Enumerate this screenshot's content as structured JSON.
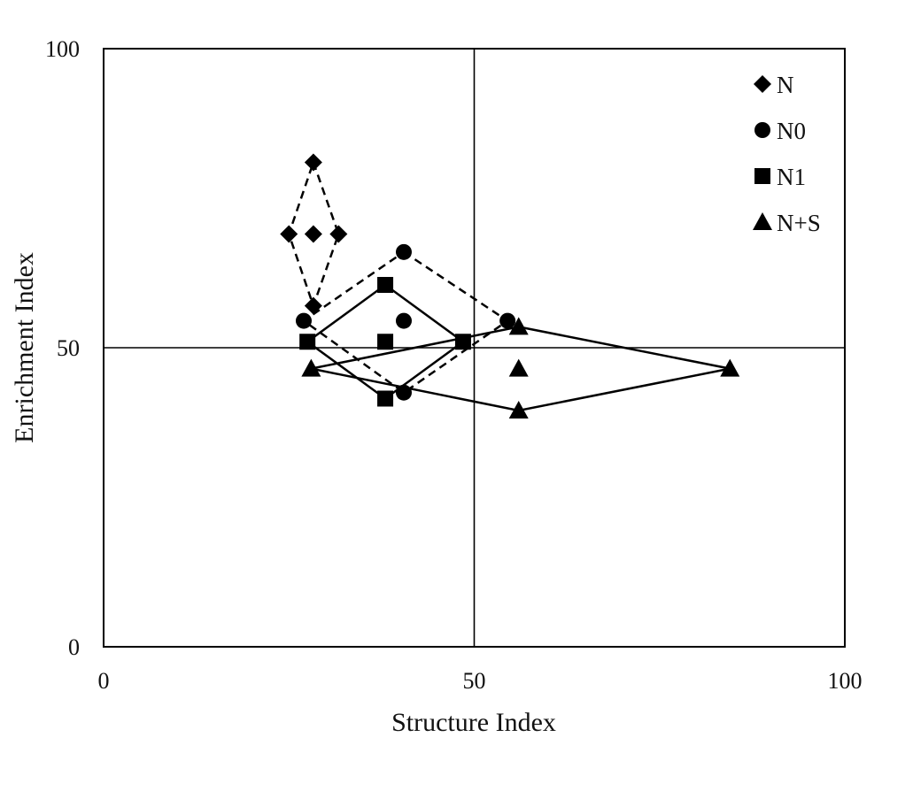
{
  "chart_data": {
    "type": "scatter",
    "title": "",
    "xlabel": "Structure Index",
    "ylabel": "Enrichment Index",
    "xlim": [
      0,
      100
    ],
    "ylim": [
      0,
      100
    ],
    "xticks": [
      "0",
      "50",
      "100"
    ],
    "yticks": [
      "0",
      "50",
      "100"
    ],
    "reference_lines": {
      "x": 50,
      "y": 50
    },
    "grid": false,
    "legend_position": "top-right",
    "series": [
      {
        "name": "N",
        "marker": "diamond",
        "line_style": "dashed",
        "points": [
          [
            25,
            69
          ],
          [
            28.3,
            81
          ],
          [
            28.3,
            69
          ],
          [
            31.7,
            69
          ],
          [
            28.3,
            57
          ]
        ],
        "hull": [
          [
            28.3,
            81
          ],
          [
            31.7,
            69
          ],
          [
            28.3,
            57
          ],
          [
            25,
            69
          ]
        ]
      },
      {
        "name": "N0",
        "marker": "circle",
        "line_style": "dashed",
        "points": [
          [
            27,
            54.5
          ],
          [
            40.5,
            66
          ],
          [
            40.5,
            54.5
          ],
          [
            54.5,
            54.5
          ],
          [
            40.5,
            42.5
          ]
        ],
        "hull": [
          [
            40.5,
            66
          ],
          [
            54.5,
            54.5
          ],
          [
            40.5,
            42.5
          ],
          [
            27,
            54.5
          ]
        ]
      },
      {
        "name": "N1",
        "marker": "square",
        "line_style": "solid",
        "points": [
          [
            27.5,
            51
          ],
          [
            38,
            60.5
          ],
          [
            38,
            51
          ],
          [
            48.5,
            51
          ],
          [
            38,
            41.5
          ]
        ],
        "hull": [
          [
            38,
            60.5
          ],
          [
            48.5,
            51
          ],
          [
            38,
            41.5
          ],
          [
            27.5,
            51
          ]
        ]
      },
      {
        "name": "N+S",
        "marker": "triangle",
        "line_style": "solid",
        "points": [
          [
            28,
            46.5
          ],
          [
            56,
            53.5
          ],
          [
            56,
            46.5
          ],
          [
            84.5,
            46.5
          ],
          [
            56,
            39.5
          ]
        ],
        "hull": [
          [
            56,
            53.5
          ],
          [
            84.5,
            46.5
          ],
          [
            56,
            39.5
          ],
          [
            28,
            46.5
          ]
        ]
      }
    ]
  }
}
